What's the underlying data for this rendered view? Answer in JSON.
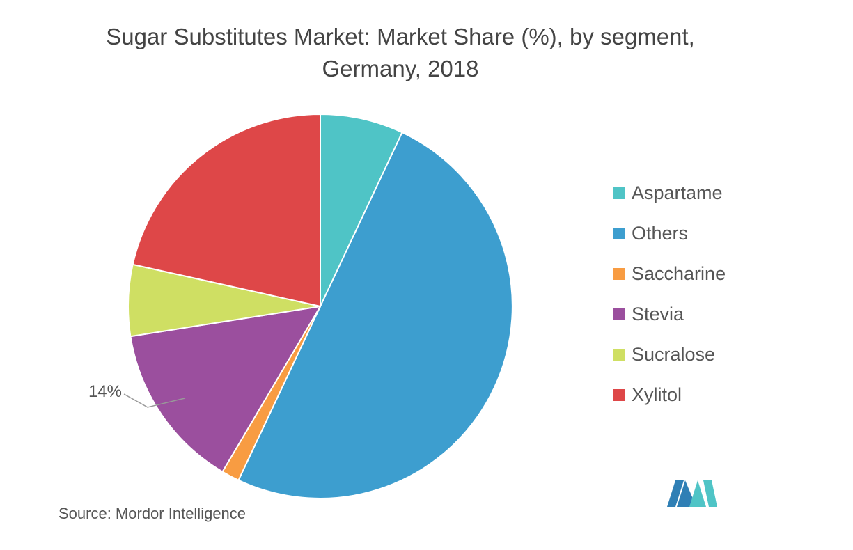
{
  "chart_data": {
    "type": "pie",
    "title": "Sugar Substitutes Market: Market Share (%), by segment,",
    "title_line2": "Germany, 2018",
    "categories": [
      "Aspartame",
      "Others",
      "Saccharine",
      "Stevia",
      "Sucralose",
      "Xylitol"
    ],
    "values": [
      7,
      50,
      1.5,
      14,
      6,
      21.5
    ],
    "colors": [
      "#4fc4c6",
      "#3d9ecf",
      "#f89c42",
      "#9b4f9e",
      "#cfdf63",
      "#de4748"
    ],
    "data_labels": [
      {
        "category": "Stevia",
        "text": "14%"
      }
    ],
    "legend_position": "right",
    "source": "Source: Mordor Intelligence"
  }
}
